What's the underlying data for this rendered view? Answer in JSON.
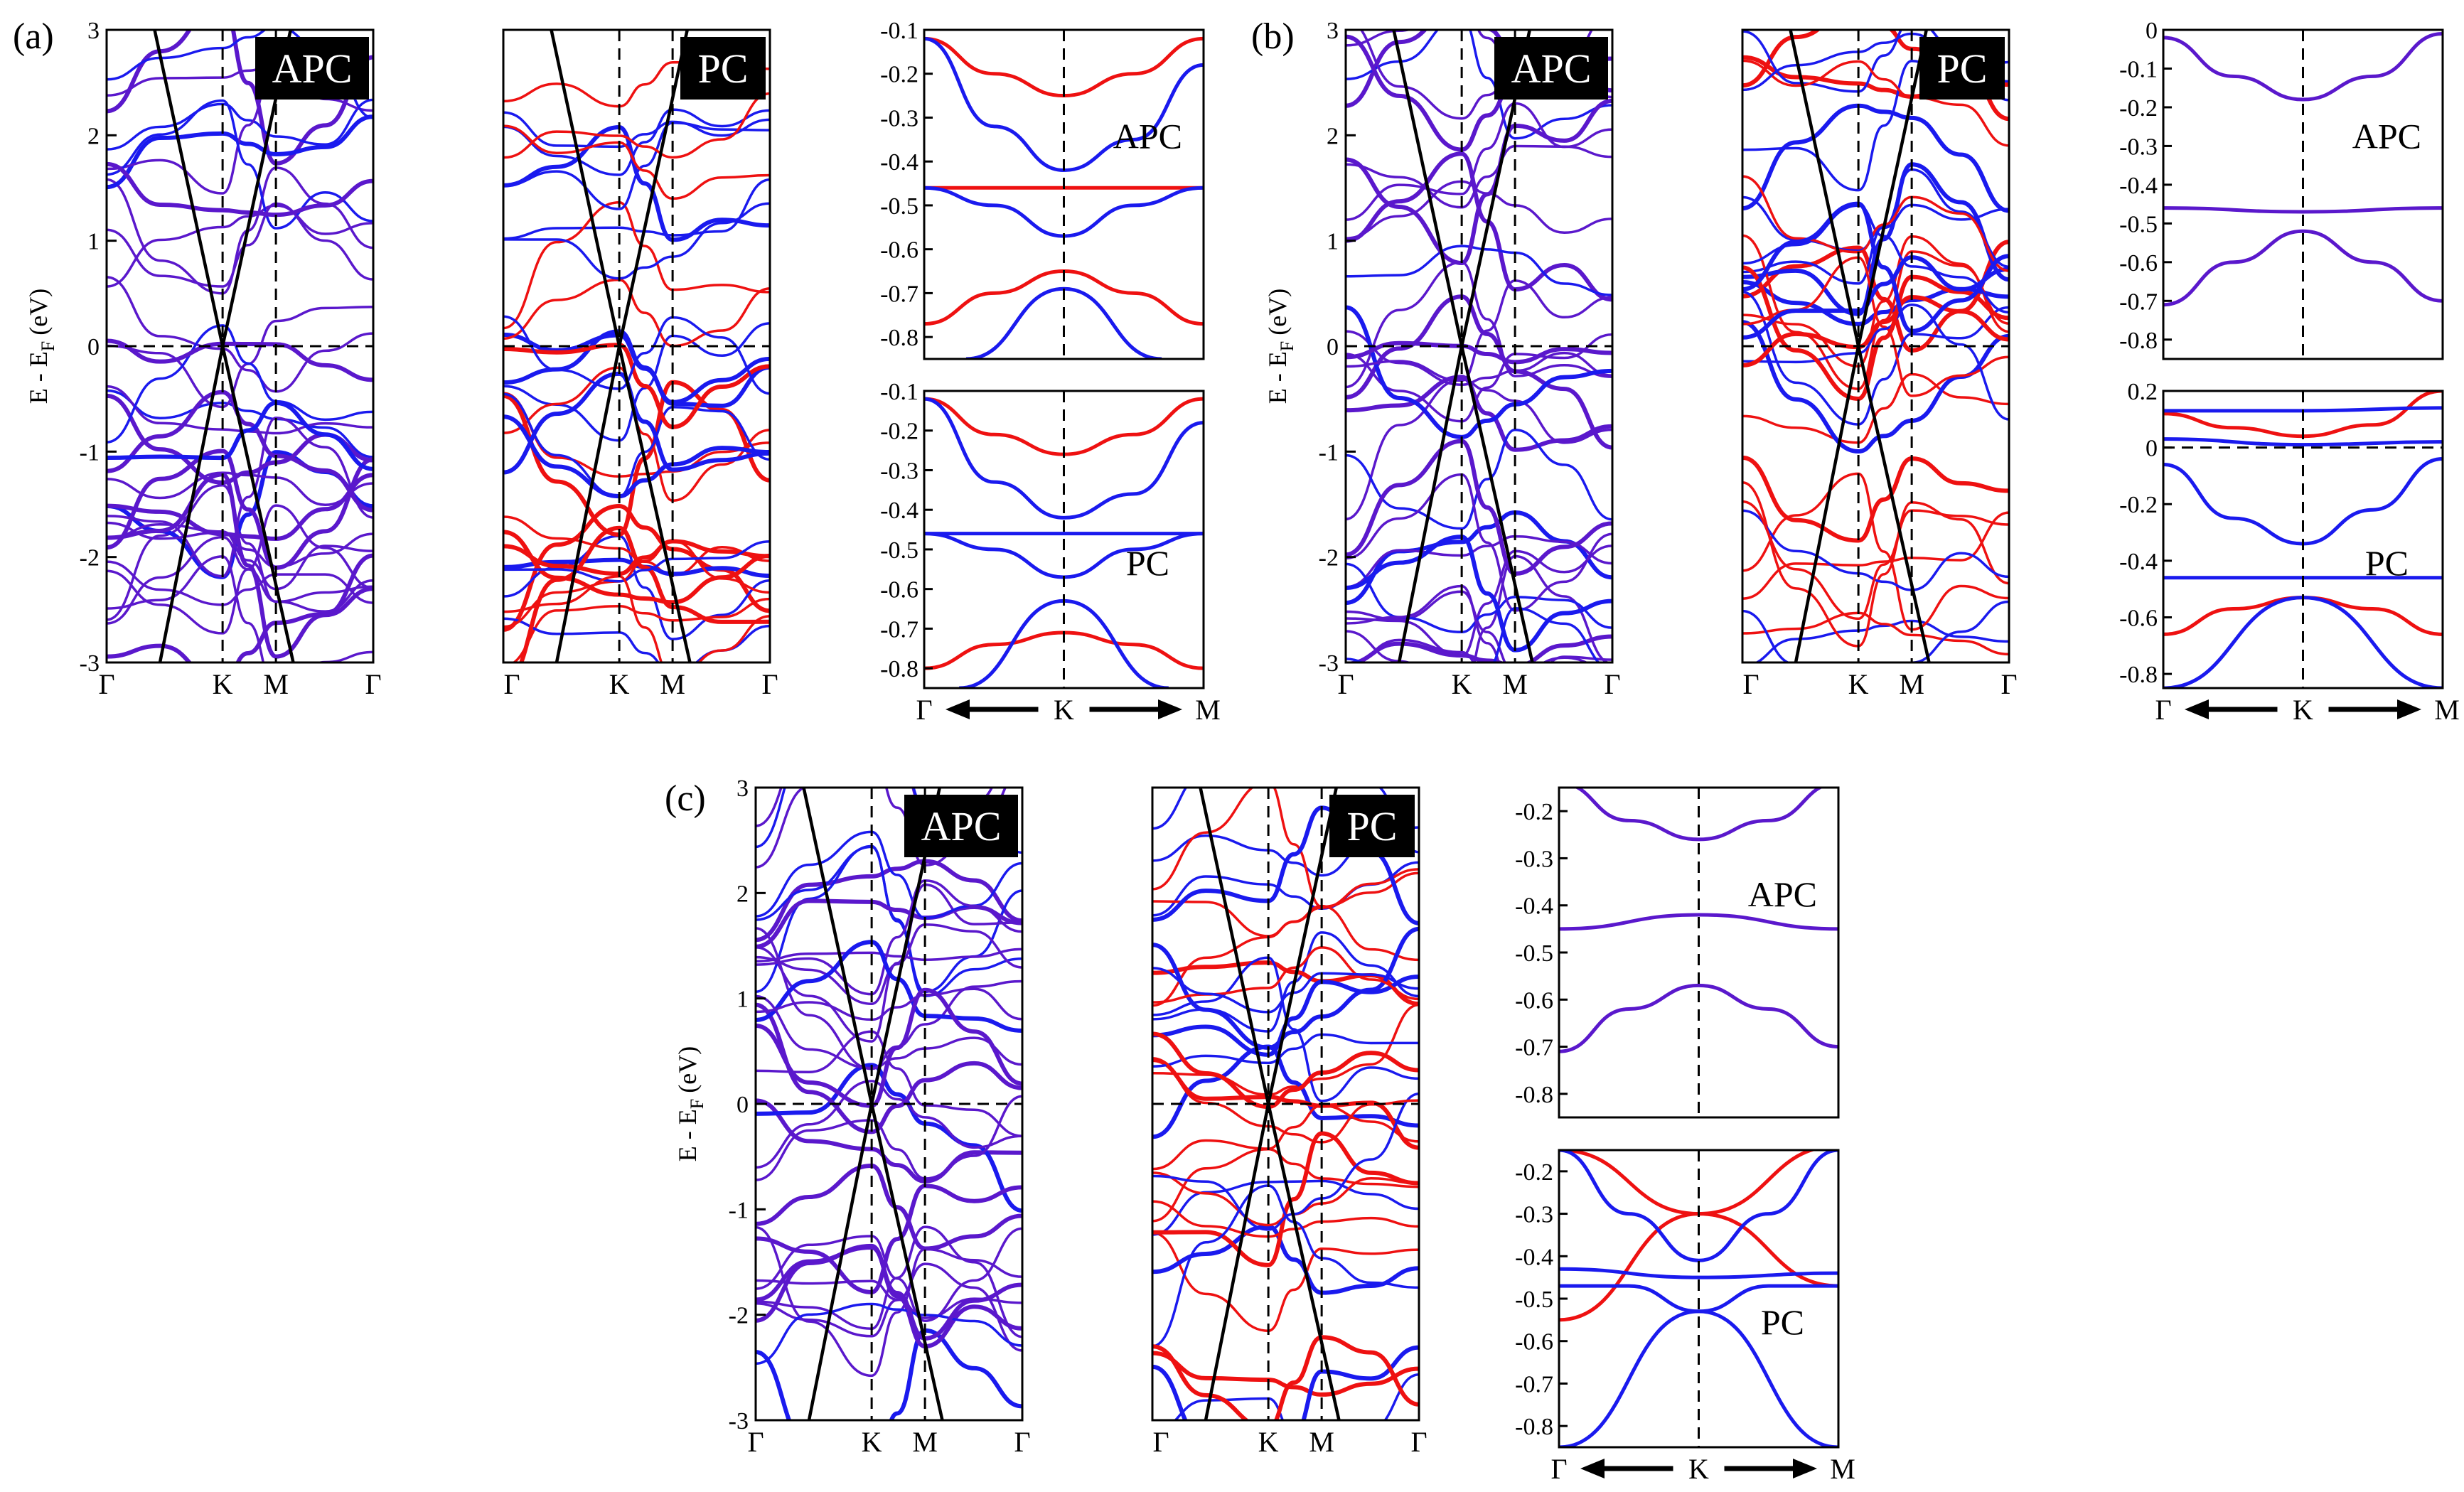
{
  "figure": {
    "panel_labels": [
      "(a)",
      "(b)",
      "(c)"
    ],
    "ylabel_main": "E - E",
    "ylabel_sub": "F",
    "ylabel_unit": "(eV)",
    "arrow_path_labels": [
      "Γ",
      "K",
      "M"
    ]
  },
  "colors": {
    "mix": "#5a18cc",
    "blue": "#1a1aee",
    "red": "#ee1111",
    "black": "#000000"
  },
  "chart_data": [
    {
      "id": "a",
      "type": "line",
      "title": "(a)",
      "xlabel": "",
      "ylabel": "E - E_F (eV)",
      "main_ylim": [
        -3,
        3
      ],
      "main_yticks": [
        "-3",
        "-2",
        "-1",
        "0",
        "1",
        "2",
        "3"
      ],
      "main_xticks": [
        "Γ",
        "K",
        "M",
        "Γ"
      ],
      "panels": [
        {
          "tag": "APC",
          "style": "mix",
          "note": "bands near K colored blend of spin channels"
        },
        {
          "tag": "PC",
          "style": "split",
          "note": "spin-up (red) and spin-down (blue) bands"
        }
      ],
      "insets": [
        {
          "label": "APC",
          "ylim": [
            -0.85,
            -0.1
          ],
          "yticks": [
            "-0.1",
            "-0.2",
            "-0.3",
            "-0.4",
            "-0.5",
            "-0.6",
            "-0.7",
            "-0.8"
          ],
          "lines": [
            {
              "color": "red",
              "points": [
                [
                  -1,
                  -0.12
                ],
                [
                  -0.5,
                  -0.2
                ],
                [
                  0,
                  -0.25
                ],
                [
                  0.5,
                  -0.2
                ],
                [
                  1,
                  -0.12
                ]
              ]
            },
            {
              "color": "blue",
              "points": [
                [
                  -1,
                  -0.12
                ],
                [
                  -0.5,
                  -0.32
                ],
                [
                  0,
                  -0.42
                ],
                [
                  0.5,
                  -0.35
                ],
                [
                  1,
                  -0.18
                ]
              ]
            },
            {
              "color": "red",
              "points": [
                [
                  -1,
                  -0.46
                ],
                [
                  0,
                  -0.46
                ],
                [
                  1,
                  -0.46
                ]
              ]
            },
            {
              "color": "blue",
              "points": [
                [
                  -1,
                  -0.46
                ],
                [
                  -0.5,
                  -0.5
                ],
                [
                  0,
                  -0.57
                ],
                [
                  0.5,
                  -0.5
                ],
                [
                  1,
                  -0.46
                ]
              ]
            },
            {
              "color": "red",
              "points": [
                [
                  -1,
                  -0.77
                ],
                [
                  -0.5,
                  -0.7
                ],
                [
                  0,
                  -0.65
                ],
                [
                  0.5,
                  -0.7
                ],
                [
                  1,
                  -0.77
                ]
              ]
            },
            {
              "color": "blue",
              "points": [
                [
                  -0.7,
                  -0.85
                ],
                [
                  0,
                  -0.69
                ],
                [
                  0.7,
                  -0.85
                ]
              ]
            }
          ]
        },
        {
          "label": "PC",
          "ylim": [
            -0.85,
            -0.1
          ],
          "yticks": [
            "-0.1",
            "-0.2",
            "-0.3",
            "-0.4",
            "-0.5",
            "-0.6",
            "-0.7",
            "-0.8"
          ],
          "lines": [
            {
              "color": "red",
              "points": [
                [
                  -1,
                  -0.12
                ],
                [
                  -0.5,
                  -0.21
                ],
                [
                  0,
                  -0.26
                ],
                [
                  0.5,
                  -0.21
                ],
                [
                  1,
                  -0.12
                ]
              ]
            },
            {
              "color": "blue",
              "points": [
                [
                  -1,
                  -0.12
                ],
                [
                  -0.5,
                  -0.33
                ],
                [
                  0,
                  -0.42
                ],
                [
                  0.5,
                  -0.36
                ],
                [
                  1,
                  -0.18
                ]
              ]
            },
            {
              "color": "blue",
              "points": [
                [
                  -1,
                  -0.46
                ],
                [
                  0,
                  -0.46
                ],
                [
                  1,
                  -0.46
                ]
              ]
            },
            {
              "color": "blue",
              "points": [
                [
                  -1,
                  -0.46
                ],
                [
                  -0.5,
                  -0.5
                ],
                [
                  0,
                  -0.57
                ],
                [
                  0.5,
                  -0.5
                ],
                [
                  1,
                  -0.46
                ]
              ]
            },
            {
              "color": "red",
              "points": [
                [
                  -1,
                  -0.8
                ],
                [
                  -0.5,
                  -0.74
                ],
                [
                  0,
                  -0.71
                ],
                [
                  0.5,
                  -0.74
                ],
                [
                  1,
                  -0.8
                ]
              ]
            },
            {
              "color": "blue",
              "points": [
                [
                  -0.75,
                  -0.85
                ],
                [
                  0,
                  -0.63
                ],
                [
                  0.75,
                  -0.85
                ]
              ]
            }
          ]
        }
      ]
    },
    {
      "id": "b",
      "type": "line",
      "title": "(b)",
      "xlabel": "",
      "ylabel": "E - E_F (eV)",
      "main_ylim": [
        -3,
        3
      ],
      "main_yticks": [
        "-3",
        "-2",
        "-1",
        "0",
        "1",
        "2",
        "3"
      ],
      "main_xticks": [
        "Γ",
        "K",
        "M",
        "Γ"
      ],
      "panels": [
        {
          "tag": "APC",
          "style": "mix"
        },
        {
          "tag": "PC",
          "style": "split"
        }
      ],
      "insets": [
        {
          "label": "APC",
          "ylim": [
            -0.85,
            0
          ],
          "yticks": [
            "0",
            "-0.1",
            "-0.2",
            "-0.3",
            "-0.4",
            "-0.5",
            "-0.6",
            "-0.7",
            "-0.8"
          ],
          "lines": [
            {
              "color": "mix",
              "points": [
                [
                  -1,
                  -0.02
                ],
                [
                  -0.5,
                  -0.12
                ],
                [
                  0,
                  -0.18
                ],
                [
                  0.5,
                  -0.12
                ],
                [
                  1,
                  -0.01
                ]
              ]
            },
            {
              "color": "mix",
              "points": [
                [
                  -1,
                  -0.46
                ],
                [
                  0,
                  -0.47
                ],
                [
                  1,
                  -0.46
                ]
              ]
            },
            {
              "color": "mix",
              "points": [
                [
                  -1,
                  -0.71
                ],
                [
                  -0.5,
                  -0.6
                ],
                [
                  0,
                  -0.52
                ],
                [
                  0.5,
                  -0.6
                ],
                [
                  1,
                  -0.7
                ]
              ]
            }
          ]
        },
        {
          "label": "PC",
          "ylim": [
            -0.85,
            0.2
          ],
          "yticks": [
            "0.2",
            "0",
            "-0.2",
            "-0.4",
            "-0.6",
            "-0.8"
          ],
          "lines": [
            {
              "color": "red",
              "points": [
                [
                  -1,
                  0.12
                ],
                [
                  -0.5,
                  0.07
                ],
                [
                  0,
                  0.04
                ],
                [
                  0.5,
                  0.08
                ],
                [
                  1,
                  0.2
                ]
              ]
            },
            {
              "color": "blue",
              "points": [
                [
                  -1,
                  0.13
                ],
                [
                  0,
                  0.13
                ],
                [
                  1,
                  0.14
                ]
              ]
            },
            {
              "color": "blue",
              "points": [
                [
                  -1,
                  0.03
                ],
                [
                  0,
                  0.01
                ],
                [
                  1,
                  0.02
                ]
              ]
            },
            {
              "color": "blue",
              "points": [
                [
                  -1,
                  -0.06
                ],
                [
                  -0.5,
                  -0.25
                ],
                [
                  0,
                  -0.34
                ],
                [
                  0.5,
                  -0.22
                ],
                [
                  1,
                  -0.04
                ]
              ]
            },
            {
              "color": "blue",
              "points": [
                [
                  -1,
                  -0.46
                ],
                [
                  0,
                  -0.46
                ],
                [
                  1,
                  -0.46
                ]
              ]
            },
            {
              "color": "red",
              "points": [
                [
                  -1,
                  -0.66
                ],
                [
                  -0.5,
                  -0.57
                ],
                [
                  0,
                  -0.53
                ],
                [
                  0.5,
                  -0.57
                ],
                [
                  1,
                  -0.66
                ]
              ]
            },
            {
              "color": "blue",
              "points": [
                [
                  -1,
                  -0.85
                ],
                [
                  0,
                  -0.53
                ],
                [
                  1,
                  -0.85
                ]
              ]
            }
          ]
        }
      ]
    },
    {
      "id": "c",
      "type": "line",
      "title": "(c)",
      "xlabel": "",
      "ylabel": "E - E_F (eV)",
      "main_ylim": [
        -3,
        3
      ],
      "main_yticks": [
        "-3",
        "-2",
        "-1",
        "0",
        "1",
        "2",
        "3"
      ],
      "main_xticks": [
        "Γ",
        "K",
        "M",
        "Γ"
      ],
      "panels": [
        {
          "tag": "APC",
          "style": "mix"
        },
        {
          "tag": "PC",
          "style": "split"
        }
      ],
      "insets": [
        {
          "label": "APC",
          "ylim": [
            -0.85,
            -0.15
          ],
          "yticks": [
            "-0.2",
            "-0.3",
            "-0.4",
            "-0.5",
            "-0.6",
            "-0.7",
            "-0.8"
          ],
          "lines": [
            {
              "color": "mix",
              "points": [
                [
                  -1,
                  -0.14
                ],
                [
                  -0.5,
                  -0.22
                ],
                [
                  0,
                  -0.26
                ],
                [
                  0.5,
                  -0.22
                ],
                [
                  1,
                  -0.14
                ]
              ]
            },
            {
              "color": "mix",
              "points": [
                [
                  -1,
                  -0.45
                ],
                [
                  0,
                  -0.42
                ],
                [
                  1,
                  -0.45
                ]
              ]
            },
            {
              "color": "mix",
              "points": [
                [
                  -1,
                  -0.71
                ],
                [
                  -0.5,
                  -0.62
                ],
                [
                  0,
                  -0.57
                ],
                [
                  0.5,
                  -0.62
                ],
                [
                  1,
                  -0.7
                ]
              ]
            }
          ]
        },
        {
          "label": "PC",
          "ylim": [
            -0.85,
            -0.15
          ],
          "yticks": [
            "-0.2",
            "-0.3",
            "-0.4",
            "-0.5",
            "-0.6",
            "-0.7",
            "-0.8"
          ],
          "lines": [
            {
              "color": "red",
              "points": [
                [
                  -1,
                  -0.15
                ],
                [
                  0,
                  -0.3
                ],
                [
                  1,
                  -0.47
                ]
              ]
            },
            {
              "color": "red",
              "points": [
                [
                  -1,
                  -0.55
                ],
                [
                  0,
                  -0.3
                ],
                [
                  1,
                  -0.14
                ]
              ]
            },
            {
              "color": "blue",
              "points": [
                [
                  -1,
                  -0.15
                ],
                [
                  -0.5,
                  -0.3
                ],
                [
                  0,
                  -0.41
                ],
                [
                  0.5,
                  -0.3
                ],
                [
                  1,
                  -0.15
                ]
              ]
            },
            {
              "color": "blue",
              "points": [
                [
                  -1,
                  -0.43
                ],
                [
                  0,
                  -0.45
                ],
                [
                  1,
                  -0.44
                ]
              ]
            },
            {
              "color": "blue",
              "points": [
                [
                  -1,
                  -0.47
                ],
                [
                  -0.5,
                  -0.47
                ],
                [
                  0,
                  -0.53
                ],
                [
                  0.5,
                  -0.47
                ],
                [
                  1,
                  -0.47
                ]
              ]
            },
            {
              "color": "blue",
              "points": [
                [
                  -1,
                  -0.85
                ],
                [
                  0,
                  -0.53
                ],
                [
                  1,
                  -0.85
                ]
              ]
            }
          ]
        }
      ]
    }
  ]
}
